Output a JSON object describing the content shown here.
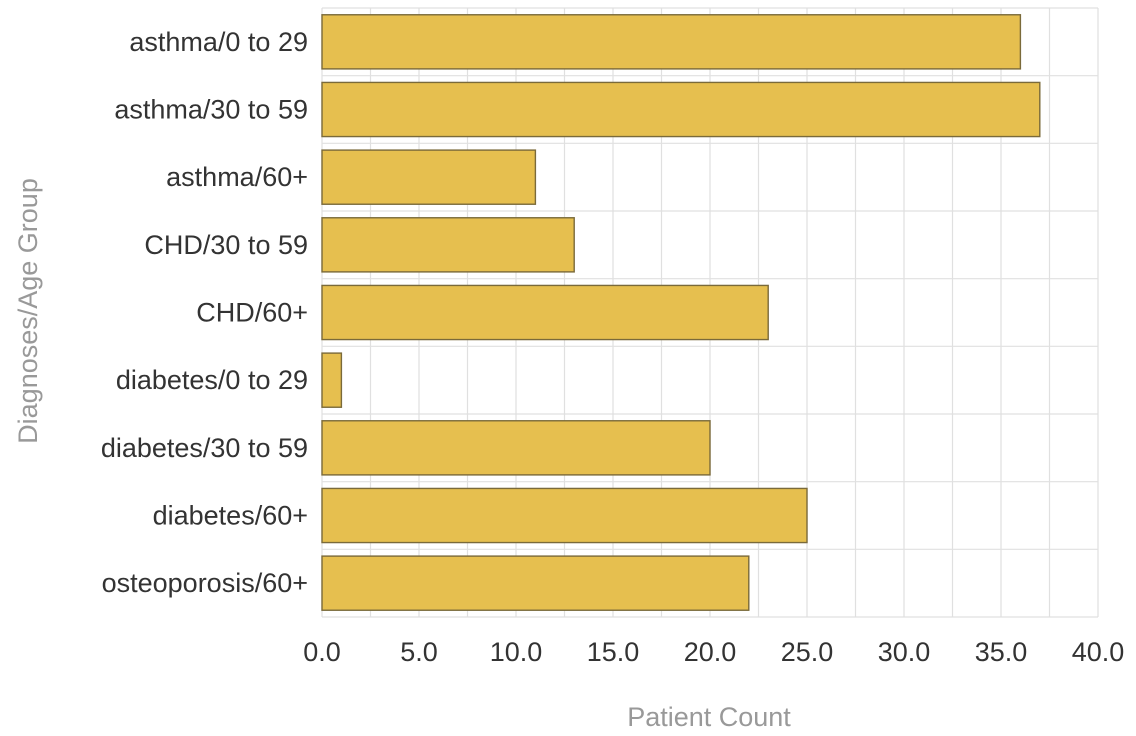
{
  "chart_data": {
    "type": "bar",
    "orientation": "horizontal",
    "categories": [
      "asthma/0 to 29",
      "asthma/30 to 59",
      "asthma/60+",
      "CHD/30 to 59",
      "CHD/60+",
      "diabetes/0 to 29",
      "diabetes/30 to 59",
      "diabetes/60+",
      "osteoporosis/60+"
    ],
    "values": [
      36,
      37,
      11,
      13,
      23,
      1,
      20,
      25,
      22
    ],
    "xlabel": "Patient Count",
    "ylabel": "Diagnoses/Age Group",
    "xlim": [
      0,
      40
    ],
    "x_ticks": [
      "0.0",
      "5.0",
      "10.0",
      "15.0",
      "20.0",
      "25.0",
      "30.0",
      "35.0",
      "40.0"
    ],
    "grid": true,
    "legend": "none",
    "bar_color": "#e6bf4f"
  }
}
